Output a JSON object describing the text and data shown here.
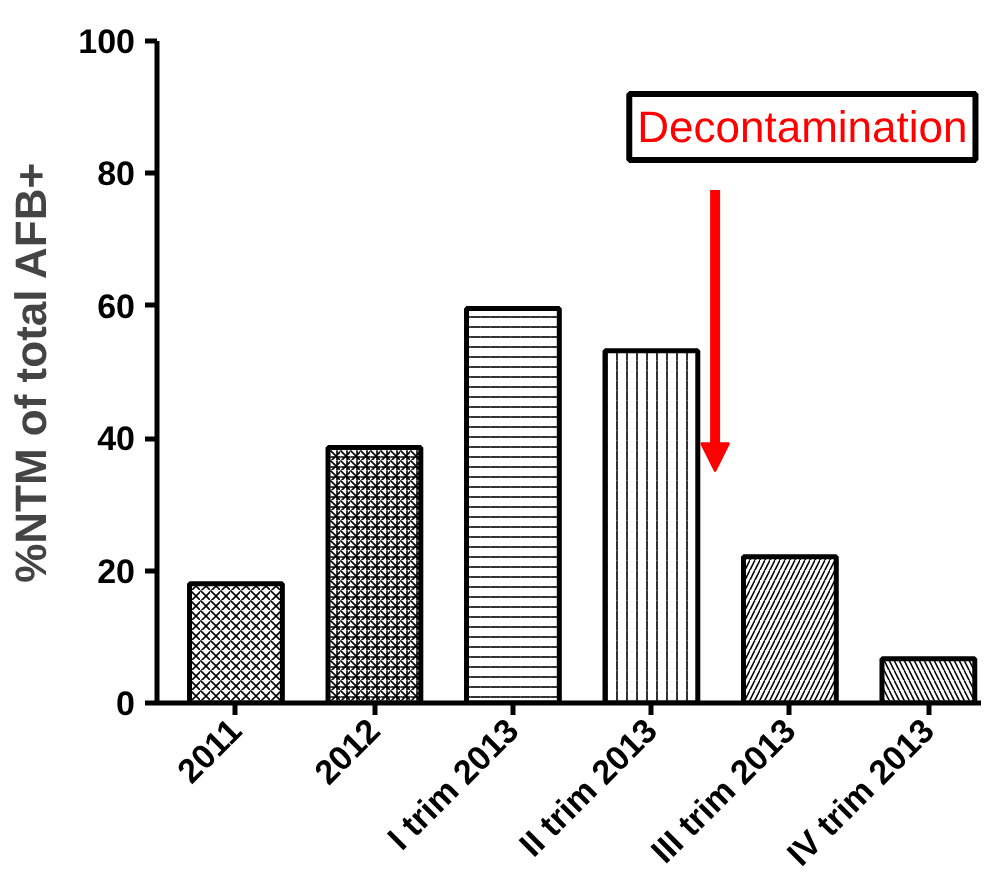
{
  "chart_data": {
    "type": "bar",
    "ylabel": "%NTM of total AFB+",
    "categories": [
      "2011",
      "2012",
      "I trim 2013",
      "II trim 2013",
      "III trim 2013",
      "IV trim 2013"
    ],
    "values": [
      18,
      38.6,
      59.6,
      53.2,
      22.1,
      6.7
    ],
    "color": "#000000",
    "ylim": [
      0,
      100
    ],
    "yticks": [
      0,
      20,
      40,
      60,
      80,
      100
    ],
    "annotations": [
      "Decontamination"
    ]
  }
}
